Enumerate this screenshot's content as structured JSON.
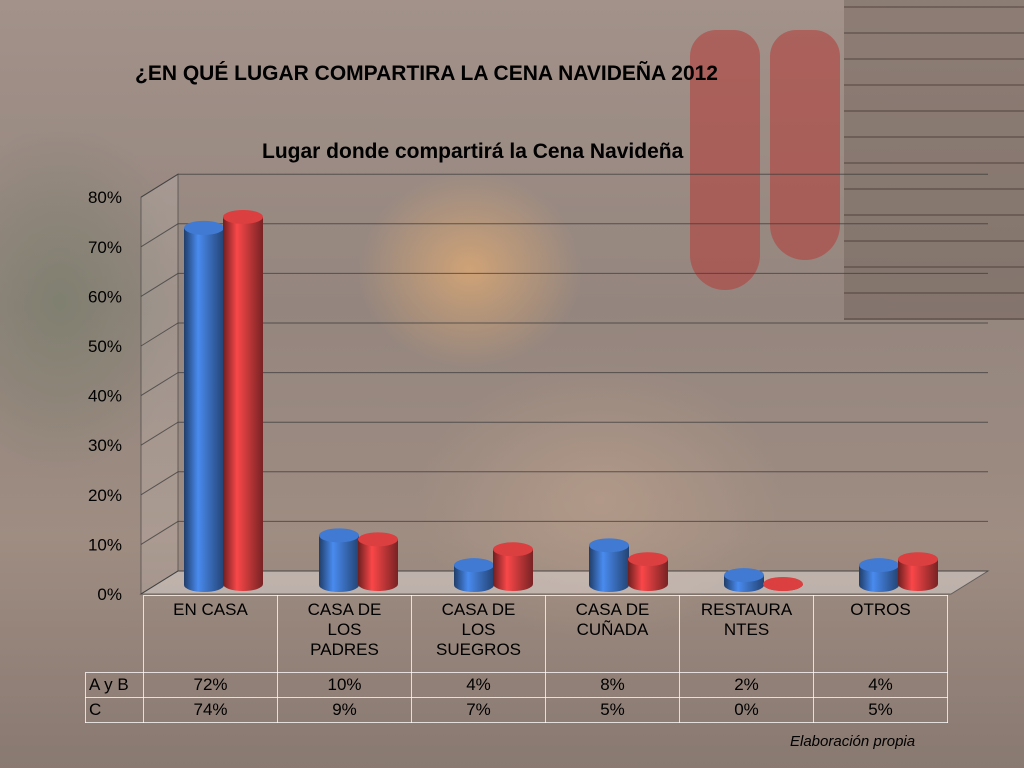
{
  "title": "¿EN QUÉ LUGAR COMPARTIRA LA CENA NAVIDEÑA 2012",
  "credit": "Elaboración propia",
  "chart_data": {
    "type": "bar",
    "title": "Lugar donde compartirá la Cena Navideña",
    "categories": [
      "EN CASA",
      "CASA DE LOS PADRES",
      "CASA DE LOS SUEGROS",
      "CASA DE CUÑADA",
      "RESTAURANTES",
      "OTROS"
    ],
    "category_labels": [
      "EN CASA",
      "CASA DE\nLOS\nPADRES",
      "CASA DE\nLOS\nSUEGROS",
      "CASA DE\nCUÑADA",
      "RESTAURA\nNTES",
      "OTROS"
    ],
    "series": [
      {
        "name": "A y B",
        "values": [
          72,
          10,
          4,
          8,
          2,
          4
        ],
        "labels": [
          "72%",
          "10%",
          "4%",
          "8%",
          "2%",
          "4%"
        ],
        "color": "#3a6fbf"
      },
      {
        "name": "C",
        "values": [
          74,
          9,
          7,
          5,
          0,
          5
        ],
        "labels": [
          "74%",
          "9%",
          "7%",
          "5%",
          "0%",
          "5%"
        ],
        "color": "#c8393a"
      }
    ],
    "ylim": [
      0,
      80
    ],
    "yticks": [
      "0%",
      "10%",
      "20%",
      "30%",
      "40%",
      "50%",
      "60%",
      "70%",
      "80%"
    ],
    "grid": true,
    "legend": "table-below"
  }
}
